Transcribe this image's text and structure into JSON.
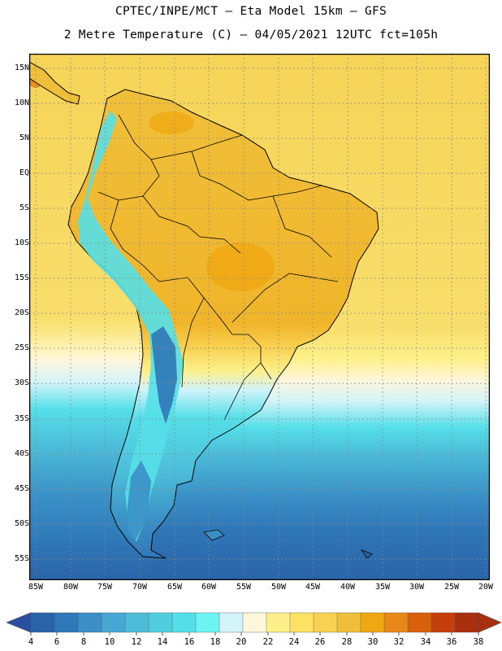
{
  "header": {
    "line1": "CPTEC/INPE/MCT —  Eta Model 15km — GFS",
    "line2": "2 Metre Temperature (C) — 04/05/2021 12UTC fct=105h"
  },
  "axes": {
    "lat_labels": [
      "15N",
      "10N",
      "5N",
      "EQ",
      "5S",
      "10S",
      "15S",
      "20S",
      "25S",
      "30S",
      "35S",
      "40S",
      "45S",
      "50S",
      "55S"
    ],
    "lon_labels": [
      "85W",
      "80W",
      "75W",
      "70W",
      "65W",
      "60W",
      "55W",
      "50W",
      "45W",
      "40W",
      "35W",
      "30W",
      "25W",
      "20W"
    ]
  },
  "colorbar": {
    "labels": [
      "4",
      "6",
      "8",
      "10",
      "12",
      "14",
      "16",
      "18",
      "20",
      "22",
      "24",
      "26",
      "28",
      "30",
      "32",
      "34",
      "36",
      "38"
    ],
    "colors": [
      "#2a64a8",
      "#2f78b8",
      "#3a90c6",
      "#45a8d2",
      "#4cbcd8",
      "#50cddf",
      "#55dfe8",
      "#6ef3f3",
      "#d2f4f8",
      "#fff6dc",
      "#fdf08a",
      "#fce163",
      "#f8d150",
      "#f0bf3a",
      "#f0a812",
      "#e8871a",
      "#d8620b",
      "#c43f0b",
      "#a8300e"
    ],
    "under_color": "#2a4ea0",
    "over_color": "#a8300e"
  }
}
